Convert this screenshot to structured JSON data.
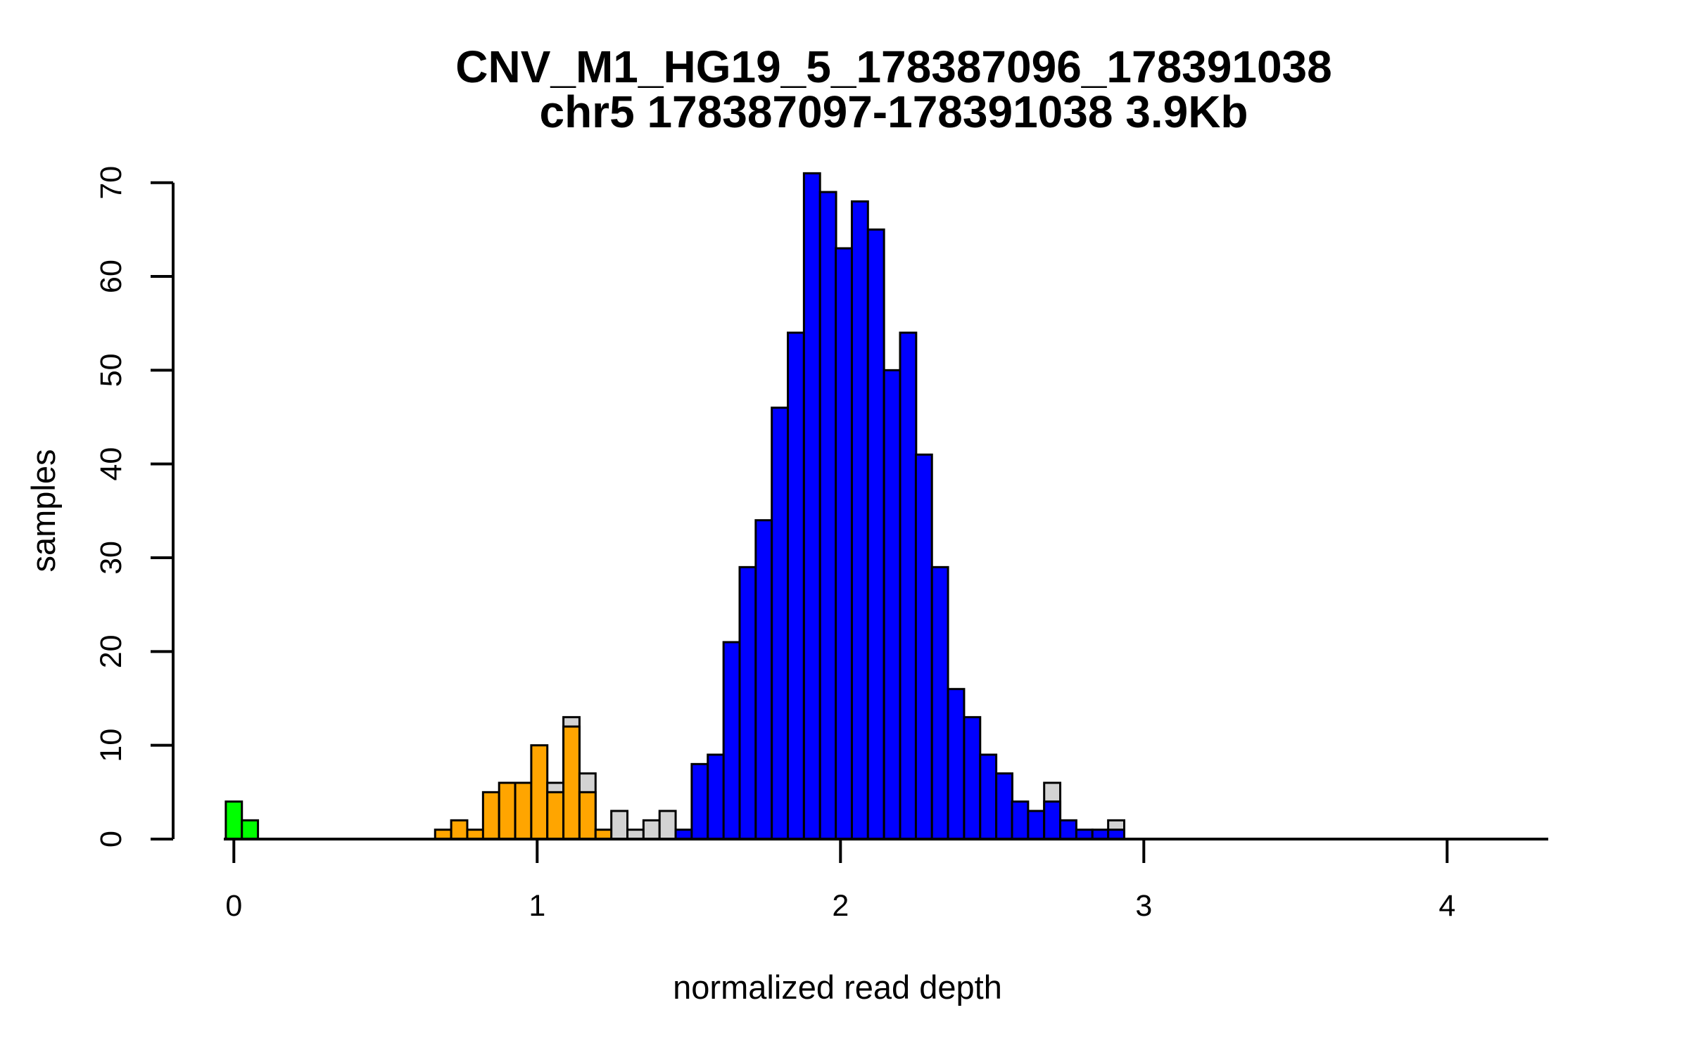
{
  "title": {
    "line1": "CNV_M1_HG19_5_178387096_178391038",
    "line2": "chr5 178387097-178391038 3.9Kb"
  },
  "axes": {
    "x": {
      "label": "normalized read depth",
      "tick_values": [
        0,
        1,
        2,
        3,
        4
      ]
    },
    "y": {
      "label": "samples",
      "tick_values": [
        0,
        10,
        20,
        30,
        40,
        50,
        60,
        70
      ]
    }
  },
  "colors": {
    "green": "#00FF00",
    "orange": "#FFA500",
    "blue": "#0000FF",
    "gray": "#D3D3D3",
    "stroke": "#000000",
    "background": "#FFFFFF"
  },
  "chart_data": {
    "type": "bar",
    "subtype": "histogram-overlay",
    "title": "CNV_M1_HG19_5_178387096_178391038 / chr5 178387097-178391038 3.9Kb",
    "xlabel": "normalized read depth",
    "ylabel": "samples",
    "xlim": [
      -0.03,
      4.33
    ],
    "ylim": [
      0,
      71
    ],
    "grid": false,
    "legend_position": "none",
    "bin_width": 0.053,
    "note": "gray_n = height of light-gray background histogram bar where it exceeds the colored bar",
    "bars": [
      {
        "x": 0.0,
        "n": 4,
        "color": "green"
      },
      {
        "x": 0.053,
        "n": 2,
        "color": "green"
      },
      {
        "x": 0.69,
        "n": 1,
        "color": "orange"
      },
      {
        "x": 0.743,
        "n": 2,
        "color": "orange"
      },
      {
        "x": 0.796,
        "n": 1,
        "color": "orange"
      },
      {
        "x": 0.848,
        "n": 5,
        "color": "orange"
      },
      {
        "x": 0.901,
        "n": 6,
        "color": "orange"
      },
      {
        "x": 0.954,
        "n": 6,
        "color": "orange"
      },
      {
        "x": 1.007,
        "n": 10,
        "color": "orange"
      },
      {
        "x": 1.06,
        "n": 5,
        "color": "orange",
        "gray_n": 6
      },
      {
        "x": 1.113,
        "n": 12,
        "color": "orange",
        "gray_n": 13
      },
      {
        "x": 1.166,
        "n": 5,
        "color": "orange",
        "gray_n": 7
      },
      {
        "x": 1.219,
        "n": 1,
        "color": "orange"
      },
      {
        "x": 1.271,
        "n": 3,
        "color": "gray"
      },
      {
        "x": 1.324,
        "n": 1,
        "color": "gray"
      },
      {
        "x": 1.377,
        "n": 2,
        "color": "gray"
      },
      {
        "x": 1.43,
        "n": 3,
        "color": "gray"
      },
      {
        "x": 1.483,
        "n": 1,
        "color": "blue"
      },
      {
        "x": 1.536,
        "n": 8,
        "color": "blue"
      },
      {
        "x": 1.589,
        "n": 9,
        "color": "blue"
      },
      {
        "x": 1.641,
        "n": 21,
        "color": "blue"
      },
      {
        "x": 1.694,
        "n": 29,
        "color": "blue"
      },
      {
        "x": 1.747,
        "n": 34,
        "color": "blue"
      },
      {
        "x": 1.8,
        "n": 46,
        "color": "blue"
      },
      {
        "x": 1.853,
        "n": 54,
        "color": "blue"
      },
      {
        "x": 1.906,
        "n": 71,
        "color": "blue"
      },
      {
        "x": 1.959,
        "n": 69,
        "color": "blue"
      },
      {
        "x": 2.011,
        "n": 63,
        "color": "blue"
      },
      {
        "x": 2.064,
        "n": 68,
        "color": "blue"
      },
      {
        "x": 2.117,
        "n": 65,
        "color": "blue"
      },
      {
        "x": 2.17,
        "n": 50,
        "color": "blue"
      },
      {
        "x": 2.223,
        "n": 54,
        "color": "blue"
      },
      {
        "x": 2.275,
        "n": 41,
        "color": "blue"
      },
      {
        "x": 2.328,
        "n": 29,
        "color": "blue"
      },
      {
        "x": 2.381,
        "n": 16,
        "color": "blue"
      },
      {
        "x": 2.434,
        "n": 13,
        "color": "blue"
      },
      {
        "x": 2.487,
        "n": 9,
        "color": "blue"
      },
      {
        "x": 2.54,
        "n": 7,
        "color": "blue"
      },
      {
        "x": 2.592,
        "n": 4,
        "color": "blue"
      },
      {
        "x": 2.645,
        "n": 3,
        "color": "blue"
      },
      {
        "x": 2.698,
        "n": 4,
        "color": "blue",
        "gray_n": 6
      },
      {
        "x": 2.751,
        "n": 2,
        "color": "blue"
      },
      {
        "x": 2.804,
        "n": 1,
        "color": "blue"
      },
      {
        "x": 2.857,
        "n": 1,
        "color": "blue"
      },
      {
        "x": 2.909,
        "n": 1,
        "color": "blue",
        "gray_n": 2
      }
    ]
  }
}
